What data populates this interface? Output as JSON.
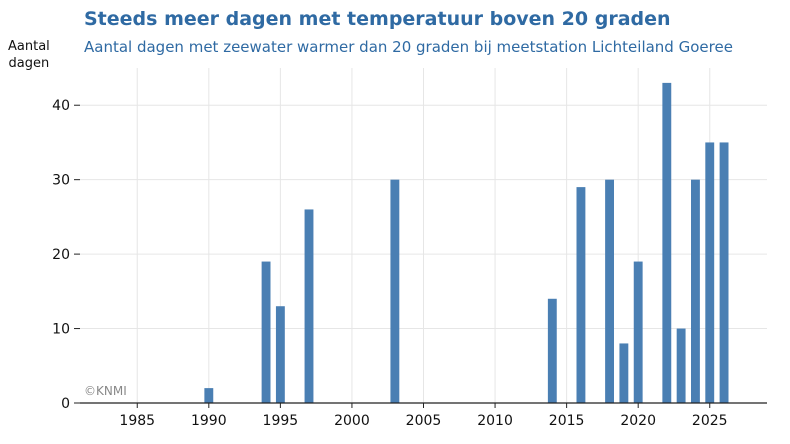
{
  "chart_data": {
    "type": "bar",
    "title": "Steeds meer dagen met temperatuur boven 20 graden",
    "subtitle": "Aantal dagen met zeewater warmer dan 20 graden bij meetstation Lichteiland Goeree",
    "ylabel_lines": [
      "Aantal",
      "dagen"
    ],
    "xlabel": "",
    "x": [
      1990,
      1994,
      1995,
      1997,
      2003,
      2014,
      2016,
      2018,
      2019,
      2020,
      2022,
      2023,
      2024,
      2025,
      2026
    ],
    "values": [
      2,
      19,
      13,
      26,
      30,
      14,
      29,
      30,
      8,
      19,
      43,
      10,
      30,
      35,
      35
    ],
    "xlim": [
      1981,
      2029
    ],
    "ylim": [
      0,
      45
    ],
    "x_ticks": [
      1985,
      1990,
      1995,
      2000,
      2005,
      2010,
      2015,
      2020,
      2025
    ],
    "y_ticks": [
      0,
      10,
      20,
      30,
      40
    ],
    "grid": true,
    "bar_color": "#4a7fb3",
    "credit": "©KNMI"
  }
}
